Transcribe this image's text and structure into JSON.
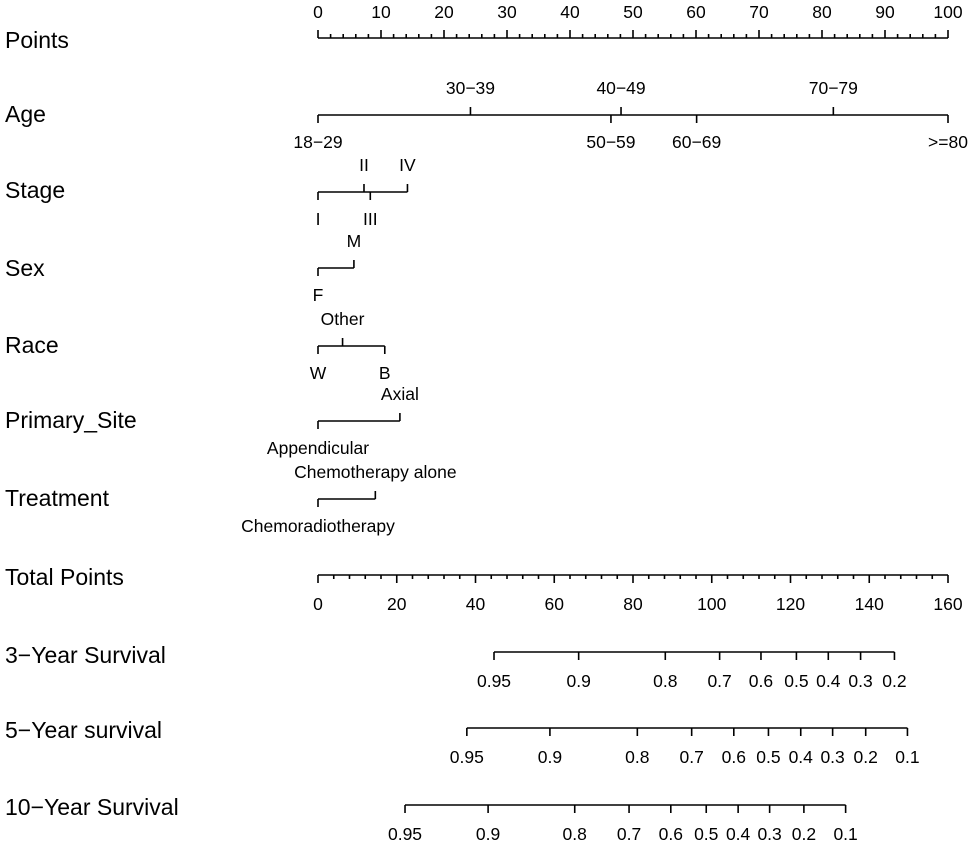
{
  "chart_data": {
    "type": "nomogram",
    "points_axis": {
      "label": "Points",
      "range": [
        0,
        100
      ],
      "major_ticks": [
        0,
        10,
        20,
        30,
        40,
        50,
        60,
        70,
        80,
        90,
        100
      ],
      "minor_step": 2
    },
    "variables": [
      {
        "label": "Age",
        "levels": [
          {
            "name": "18−29",
            "points": 0,
            "position": "below"
          },
          {
            "name": "30−39",
            "points": 24.2,
            "position": "above"
          },
          {
            "name": "40−49",
            "points": 48.1,
            "position": "above"
          },
          {
            "name": "50−59",
            "points": 46.5,
            "position": "below"
          },
          {
            "name": "60−69",
            "points": 60.1,
            "position": "below"
          },
          {
            "name": "70−79",
            "points": 81.8,
            "position": "above"
          },
          {
            "name": ">=80",
            "points": 100,
            "position": "below"
          }
        ]
      },
      {
        "label": "Stage",
        "levels": [
          {
            "name": "I",
            "points": 0,
            "position": "below"
          },
          {
            "name": "II",
            "points": 7.3,
            "position": "above"
          },
          {
            "name": "III",
            "points": 8.3,
            "position": "below"
          },
          {
            "name": "IV",
            "points": 14.2,
            "position": "above"
          }
        ]
      },
      {
        "label": "Sex",
        "levels": [
          {
            "name": "F",
            "points": 0,
            "position": "below"
          },
          {
            "name": "M",
            "points": 5.7,
            "position": "above"
          }
        ]
      },
      {
        "label": "Race",
        "levels": [
          {
            "name": "W",
            "points": 0,
            "position": "below"
          },
          {
            "name": "Other",
            "points": 3.9,
            "position": "above"
          },
          {
            "name": "B",
            "points": 10.6,
            "position": "below"
          }
        ]
      },
      {
        "label": "Primary_Site",
        "levels": [
          {
            "name": "Appendicular",
            "points": 0,
            "position": "below"
          },
          {
            "name": "Axial",
            "points": 13.0,
            "position": "above"
          }
        ]
      },
      {
        "label": "Treatment",
        "levels": [
          {
            "name": "Chemoradiotherapy",
            "points": 0,
            "position": "below"
          },
          {
            "name": "Chemotherapy alone",
            "points": 9.1,
            "position": "above"
          }
        ]
      }
    ],
    "total_points_axis": {
      "label": "Total Points",
      "range": [
        0,
        160
      ],
      "major_ticks": [
        0,
        20,
        40,
        60,
        80,
        100,
        120,
        140,
        160
      ],
      "minor_step": 4
    },
    "survival_axes": [
      {
        "label": "3−Year Survival",
        "ticks": [
          {
            "name": "0.95",
            "total_points": 44.7
          },
          {
            "name": "0.9",
            "total_points": 66.2
          },
          {
            "name": "0.8",
            "total_points": 88.2
          },
          {
            "name": "0.7",
            "total_points": 102.0
          },
          {
            "name": "0.6",
            "total_points": 112.5
          },
          {
            "name": "0.5",
            "total_points": 121.5
          },
          {
            "name": "0.4",
            "total_points": 129.6
          },
          {
            "name": "0.3",
            "total_points": 137.8
          },
          {
            "name": "0.2",
            "total_points": 146.4
          }
        ]
      },
      {
        "label": "5−Year survival",
        "ticks": [
          {
            "name": "0.95",
            "total_points": 37.8
          },
          {
            "name": "0.9",
            "total_points": 58.9
          },
          {
            "name": "0.8",
            "total_points": 81.1
          },
          {
            "name": "0.7",
            "total_points": 94.9
          },
          {
            "name": "0.6",
            "total_points": 105.6
          },
          {
            "name": "0.5",
            "total_points": 114.4
          },
          {
            "name": "0.4",
            "total_points": 122.6
          },
          {
            "name": "0.3",
            "total_points": 130.7
          },
          {
            "name": "0.2",
            "total_points": 139.1
          },
          {
            "name": "0.1",
            "total_points": 149.7
          }
        ]
      },
      {
        "label": "10−Year Survival",
        "ticks": [
          {
            "name": "0.95",
            "total_points": 22.1
          },
          {
            "name": "0.9",
            "total_points": 43.2
          },
          {
            "name": "0.8",
            "total_points": 65.2
          },
          {
            "name": "0.7",
            "total_points": 79.0
          },
          {
            "name": "0.6",
            "total_points": 89.6
          },
          {
            "name": "0.5",
            "total_points": 98.6
          },
          {
            "name": "0.4",
            "total_points": 106.7
          },
          {
            "name": "0.3",
            "total_points": 114.7
          },
          {
            "name": "0.2",
            "total_points": 123.4
          },
          {
            "name": "0.1",
            "total_points": 134.0
          }
        ]
      }
    ]
  }
}
